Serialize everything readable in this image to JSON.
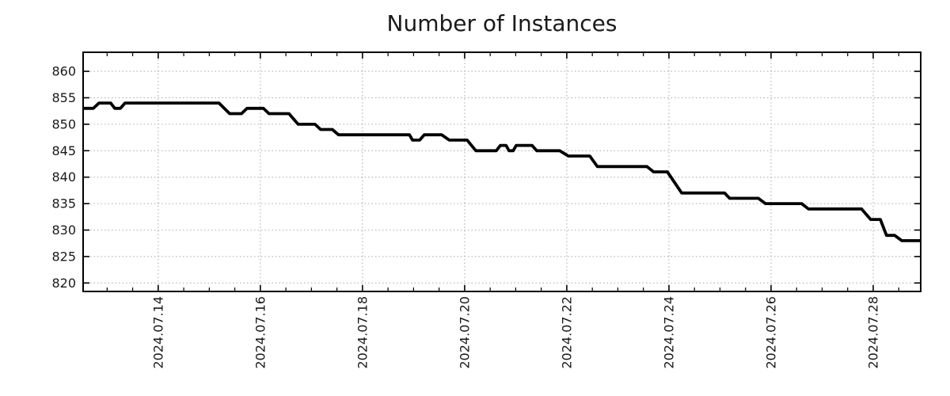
{
  "chart_data": {
    "type": "line",
    "title": "Number of Instances",
    "x_axis": {
      "tick_labels": [
        "2024.07.14",
        "2024.07.16",
        "2024.07.18",
        "2024.07.20",
        "2024.07.22",
        "2024.07.24",
        "2024.07.26",
        "2024.07.28"
      ],
      "tick_days": [
        0,
        2,
        4,
        6,
        8,
        10,
        12,
        14
      ],
      "minor_tick_interval_days": 0.5,
      "range_days": [
        -1.47,
        14.93
      ],
      "label_rotation_deg": -90
    },
    "y_axis": {
      "ticks": [
        820,
        825,
        830,
        835,
        840,
        845,
        850,
        855,
        860
      ],
      "range": [
        818.4,
        863.6
      ]
    },
    "grid": {
      "show": true,
      "style": "dotted"
    },
    "legend": {
      "show": false
    },
    "series": [
      {
        "name": "instances",
        "color": "#000000",
        "points": [
          [
            -1.47,
            853
          ],
          [
            -1.27,
            853
          ],
          [
            -1.16,
            854
          ],
          [
            -0.93,
            854
          ],
          [
            -0.85,
            853
          ],
          [
            -0.74,
            853
          ],
          [
            -0.65,
            854
          ],
          [
            1.19,
            854
          ],
          [
            1.4,
            852
          ],
          [
            1.63,
            852
          ],
          [
            1.74,
            853
          ],
          [
            2.06,
            853
          ],
          [
            2.17,
            852
          ],
          [
            2.56,
            852
          ],
          [
            2.74,
            850
          ],
          [
            3.07,
            850
          ],
          [
            3.18,
            849
          ],
          [
            3.41,
            849
          ],
          [
            3.53,
            848
          ],
          [
            4.92,
            848
          ],
          [
            4.98,
            847
          ],
          [
            5.12,
            847
          ],
          [
            5.21,
            848
          ],
          [
            5.55,
            848
          ],
          [
            5.7,
            847
          ],
          [
            6.05,
            847
          ],
          [
            6.22,
            845
          ],
          [
            6.62,
            845
          ],
          [
            6.7,
            846
          ],
          [
            6.81,
            846
          ],
          [
            6.87,
            845
          ],
          [
            6.95,
            845
          ],
          [
            7.01,
            846
          ],
          [
            7.32,
            846
          ],
          [
            7.41,
            845
          ],
          [
            7.86,
            845
          ],
          [
            8.03,
            844
          ],
          [
            8.45,
            844
          ],
          [
            8.6,
            842
          ],
          [
            9.57,
            842
          ],
          [
            9.7,
            841
          ],
          [
            9.97,
            841
          ],
          [
            10.25,
            837
          ],
          [
            11.09,
            837
          ],
          [
            11.19,
            836
          ],
          [
            11.75,
            836
          ],
          [
            11.89,
            835
          ],
          [
            12.6,
            835
          ],
          [
            12.73,
            834
          ],
          [
            13.77,
            834
          ],
          [
            13.95,
            832
          ],
          [
            14.14,
            832
          ],
          [
            14.26,
            829
          ],
          [
            14.42,
            829
          ],
          [
            14.56,
            828
          ],
          [
            14.93,
            828
          ]
        ]
      }
    ]
  },
  "colors": {
    "line": "#000000",
    "grid": "#b0b0b0",
    "axis": "#000000",
    "text": "#1a1a1a",
    "background": "#ffffff"
  }
}
